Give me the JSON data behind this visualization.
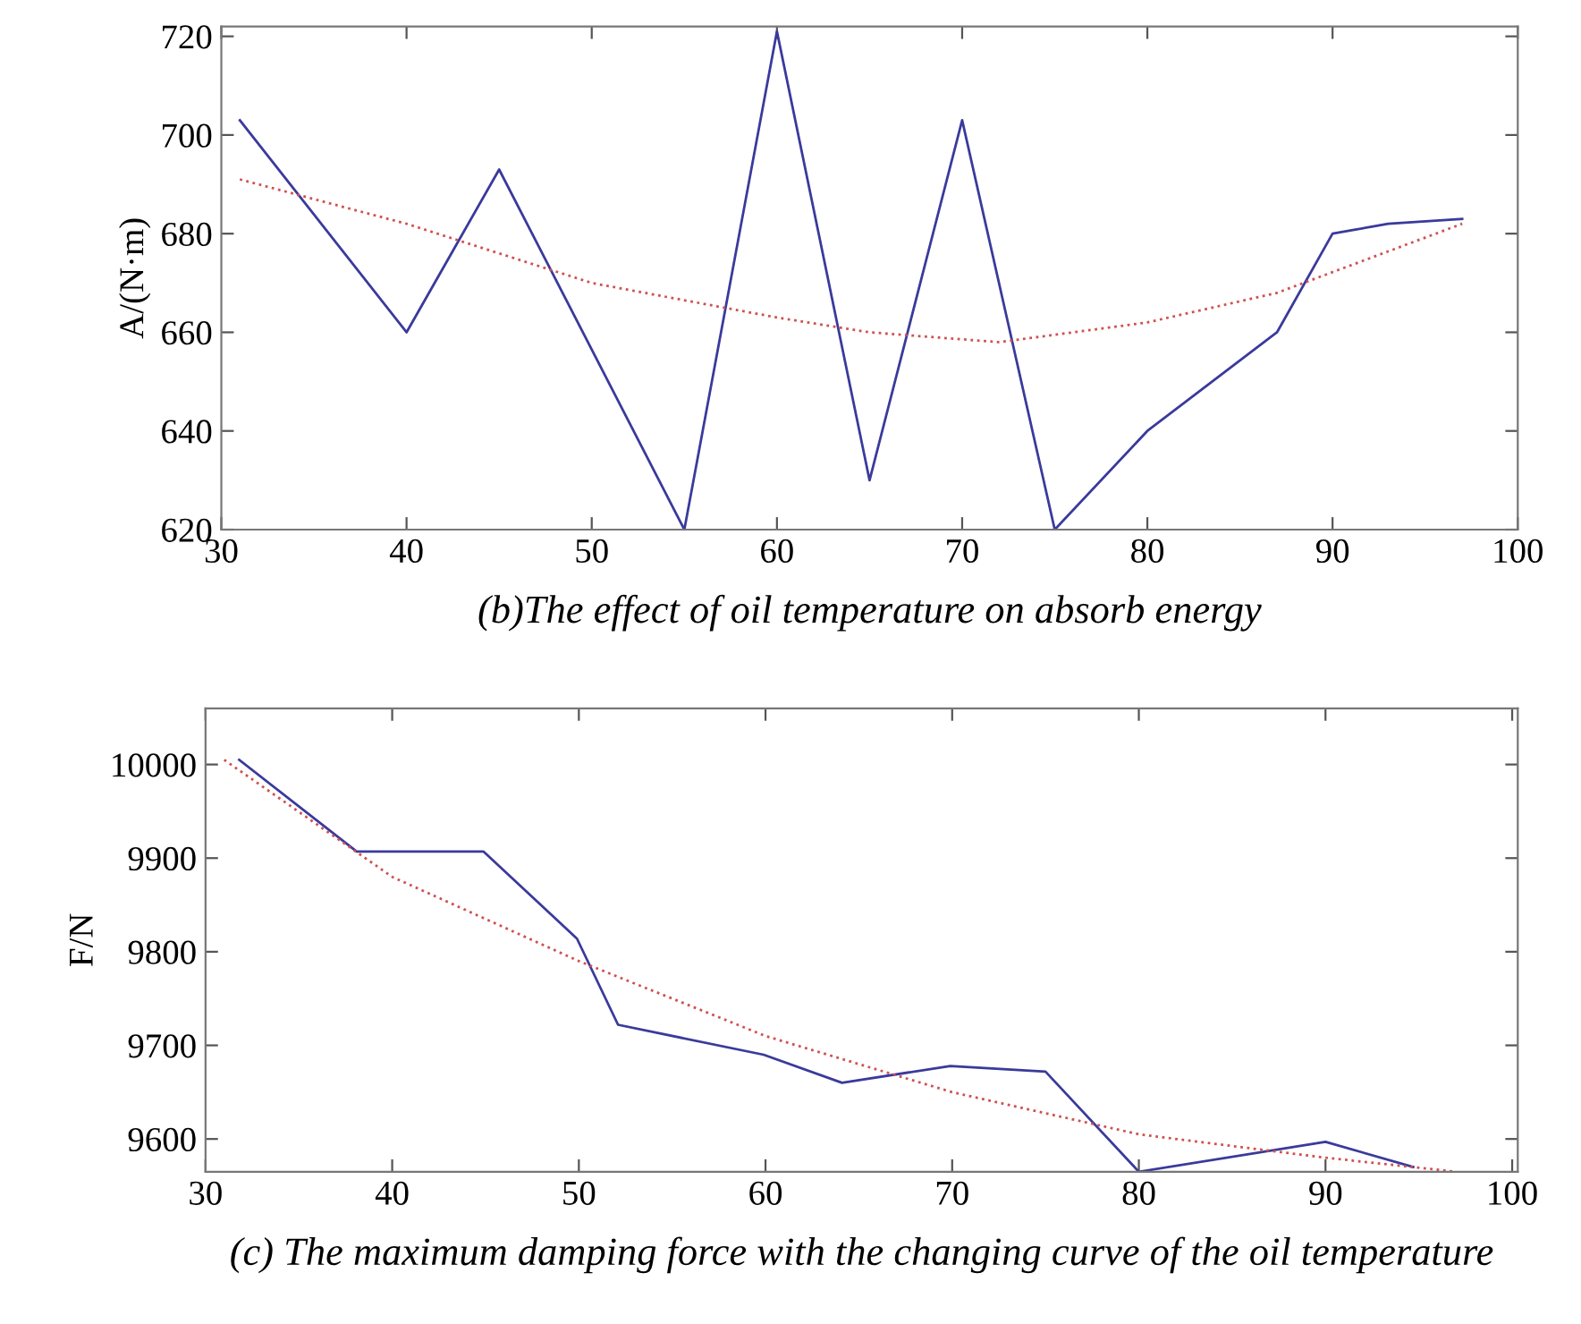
{
  "chart_data": [
    {
      "type": "line",
      "title": "(b)The effect of oil temperature on absorb energy",
      "ylabel": "A/(N·m)",
      "xlim": [
        30,
        100
      ],
      "xticks": [
        30,
        40,
        50,
        60,
        70,
        80,
        90,
        100
      ],
      "ylim": [
        620,
        722
      ],
      "yticks": [
        620,
        640,
        660,
        680,
        700,
        720
      ],
      "grid": false,
      "legend": false,
      "series": [
        {
          "color": "#3a3a9c",
          "line_style": "solid",
          "x": [
            31,
            40,
            45,
            55,
            60,
            65,
            70,
            75,
            80,
            87,
            90,
            93,
            97
          ],
          "values": [
            703,
            660,
            693,
            620,
            721,
            630,
            703,
            620,
            640,
            660,
            680,
            682,
            683
          ]
        },
        {
          "color": "#d05050",
          "line_style": "dotted",
          "x": [
            31,
            40,
            50,
            60,
            65,
            72,
            80,
            87,
            97
          ],
          "values": [
            691,
            682,
            670,
            663,
            660,
            658,
            662,
            668,
            682
          ]
        }
      ]
    },
    {
      "type": "line",
      "title": "(c) The maximum damping force with the changing curve of the oil temperature",
      "ylabel": "F/N",
      "xlim": [
        30,
        100.3
      ],
      "xticks": [
        30,
        40,
        50,
        60,
        70,
        80,
        90,
        100
      ],
      "ylim": [
        9565,
        10060
      ],
      "yticks": [
        9600,
        9700,
        9800,
        9900,
        10000
      ],
      "grid": false,
      "legend": false,
      "series": [
        {
          "color": "#3a3a9c",
          "line_style": "solid",
          "x": [
            31.8,
            38.1,
            44.9,
            49.9,
            52.1,
            59.9,
            64.1,
            69.9,
            75.0,
            80.0,
            90.0,
            94.7
          ],
          "values": [
            10005,
            9907,
            9907,
            9814,
            9722,
            9690,
            9660,
            9678,
            9672,
            9565,
            9597,
            9570
          ]
        },
        {
          "color": "#d05050",
          "line_style": "dotted",
          "x": [
            31,
            40,
            50,
            60,
            70,
            80,
            90,
            97
          ],
          "values": [
            10005,
            9880,
            9790,
            9710,
            9650,
            9605,
            9580,
            9565
          ]
        }
      ]
    }
  ]
}
